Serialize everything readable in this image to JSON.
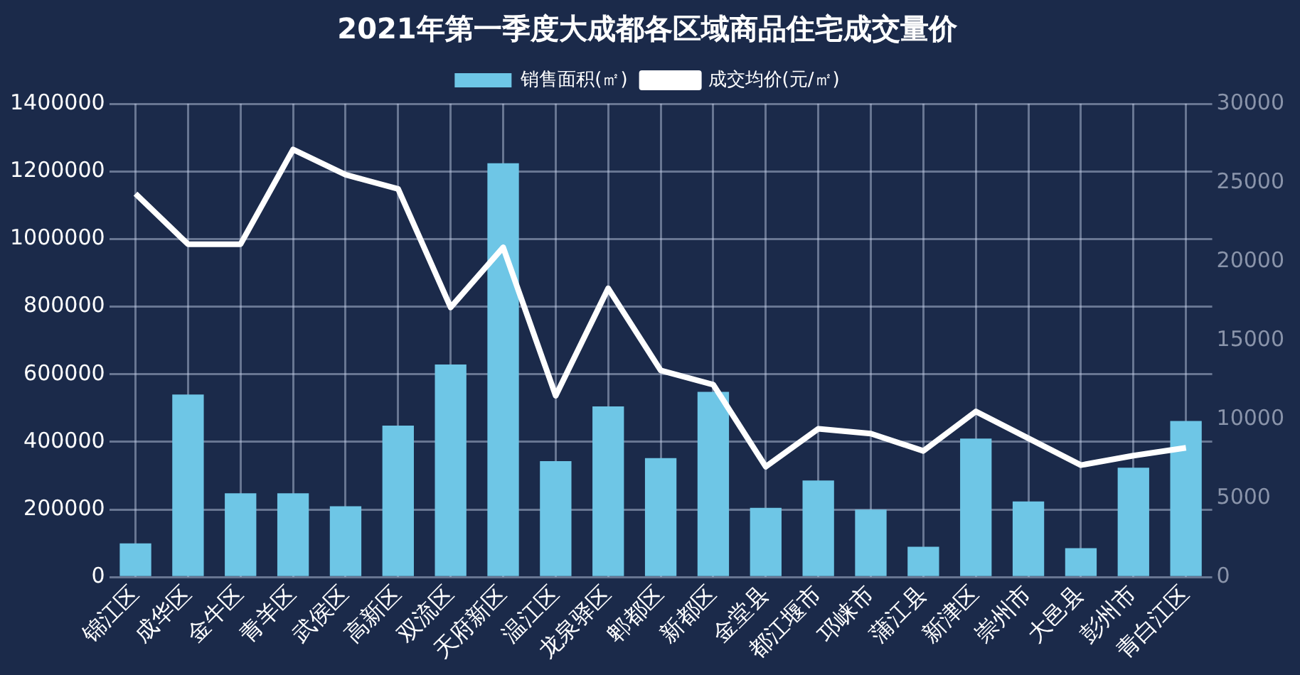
{
  "chart_data": {
    "type": "bar",
    "title": "2021年第一季度大成都各区域商品住宅成交量价",
    "categories": [
      "锦江区",
      "成华区",
      "金牛区",
      "青羊区",
      "武侯区",
      "高新区",
      "双流区",
      "天府新区",
      "温江区",
      "龙泉驿区",
      "郫都区",
      "新都区",
      "金堂县",
      "都江堰市",
      "邛崃市",
      "蒲江县",
      "新津区",
      "崇州市",
      "大邑县",
      "彭州市",
      "青白江区"
    ],
    "series": [
      {
        "name": "销售面积(㎡)",
        "color": "#6ec6e6",
        "values": [
          100000,
          540000,
          248000,
          248000,
          210000,
          448000,
          629000,
          1224000,
          343000,
          505000,
          352000,
          548000,
          205000,
          286000,
          200000,
          90000,
          410000,
          224000,
          86000,
          324000,
          462000
        ]
      },
      {
        "name": "成交均价(元/㎡)",
        "type": "line",
        "axis": "y2",
        "color": "#ffffff",
        "values": [
          24300,
          21100,
          21100,
          27100,
          25500,
          24600,
          17100,
          20900,
          11500,
          18300,
          13100,
          12200,
          7000,
          9400,
          9100,
          8000,
          10500,
          8800,
          7100,
          7700,
          8200
        ]
      }
    ],
    "ylim": [
      0,
      1400000
    ],
    "yticks": [
      0,
      200000,
      400000,
      600000,
      800000,
      1000000,
      1200000,
      1400000
    ],
    "y2lim": [
      0,
      30000
    ],
    "y2ticks": [
      0,
      5000,
      10000,
      15000,
      20000,
      25000,
      30000
    ],
    "grid": true,
    "legend": "top",
    "marker": "none"
  }
}
